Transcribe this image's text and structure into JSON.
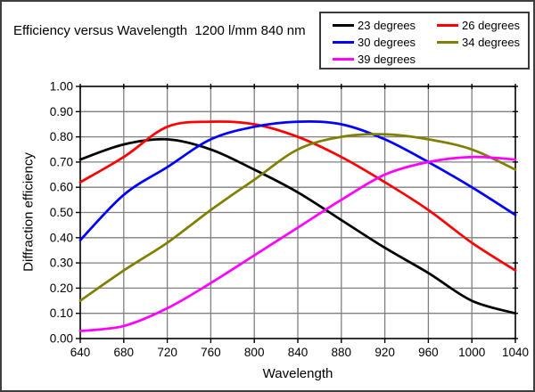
{
  "title": "Efficiency versus Wavelength  1200 l/mm 840 nm",
  "chart_data": {
    "type": "line",
    "title": "Efficiency versus Wavelength  1200 l/mm 840 nm",
    "xlabel": "Wavelength",
    "ylabel": "Diffraction efficiency",
    "xlim": [
      640,
      1040
    ],
    "ylim": [
      0.0,
      1.0
    ],
    "xticks": [
      640,
      680,
      720,
      760,
      800,
      840,
      880,
      920,
      960,
      1000,
      1040
    ],
    "ytick_labels": [
      "0.00",
      "0.10",
      "0.20",
      "0.30",
      "0.40",
      "0.50",
      "0.60",
      "0.70",
      "0.80",
      "0.90",
      "1.00"
    ],
    "grid": true,
    "legend_position": "top-right",
    "x": [
      640,
      680,
      720,
      760,
      800,
      840,
      880,
      920,
      960,
      1000,
      1040
    ],
    "series": [
      {
        "name": "23 degrees",
        "color": "#000000",
        "values": [
          0.71,
          0.77,
          0.79,
          0.75,
          0.67,
          0.58,
          0.47,
          0.36,
          0.26,
          0.15,
          0.1
        ]
      },
      {
        "name": "26 degrees",
        "color": "#FF0000",
        "values": [
          0.62,
          0.72,
          0.84,
          0.86,
          0.85,
          0.8,
          0.72,
          0.62,
          0.51,
          0.38,
          0.27
        ]
      },
      {
        "name": "30 degrees",
        "color": "#0000FF",
        "values": [
          0.39,
          0.57,
          0.68,
          0.79,
          0.84,
          0.86,
          0.85,
          0.79,
          0.7,
          0.6,
          0.49
        ]
      },
      {
        "name": "34 degrees",
        "color": "#808000",
        "values": [
          0.15,
          0.27,
          0.38,
          0.51,
          0.63,
          0.75,
          0.8,
          0.81,
          0.79,
          0.75,
          0.67
        ]
      },
      {
        "name": "39 degrees",
        "color": "#FF00FF",
        "values": [
          0.03,
          0.05,
          0.12,
          0.22,
          0.33,
          0.44,
          0.55,
          0.65,
          0.7,
          0.72,
          0.71
        ]
      }
    ]
  },
  "colors": {
    "gridline": "#808080",
    "plot_border": "#000000",
    "text": "#000000"
  }
}
